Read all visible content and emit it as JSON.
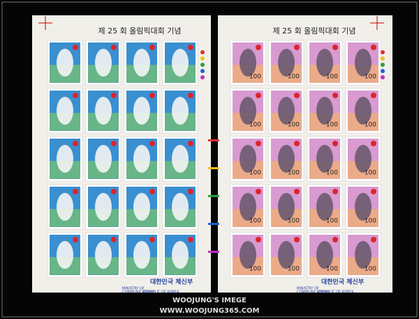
{
  "sheets": [
    {
      "title": "제 25 회 올림픽대회 기념",
      "footer_korean": "대한민국 체신부",
      "footer_english": [
        "MINISTRY OF",
        "COMMUNICATIONS",
        "REPUBLIC OF KOREA"
      ]
    },
    {
      "title": "제 25 회 올림픽대회 기념",
      "footer_korean": "대한민국 체신부",
      "footer_english": [
        "MINISTRY OF",
        "COMMUNICATIONS",
        "REPUBLIC OF KOREA"
      ],
      "stamp_value": "100"
    }
  ],
  "watermark": {
    "name": "WOOJUNG'S IMEGE",
    "url": "WWW.WOOJUNG365.COM"
  }
}
